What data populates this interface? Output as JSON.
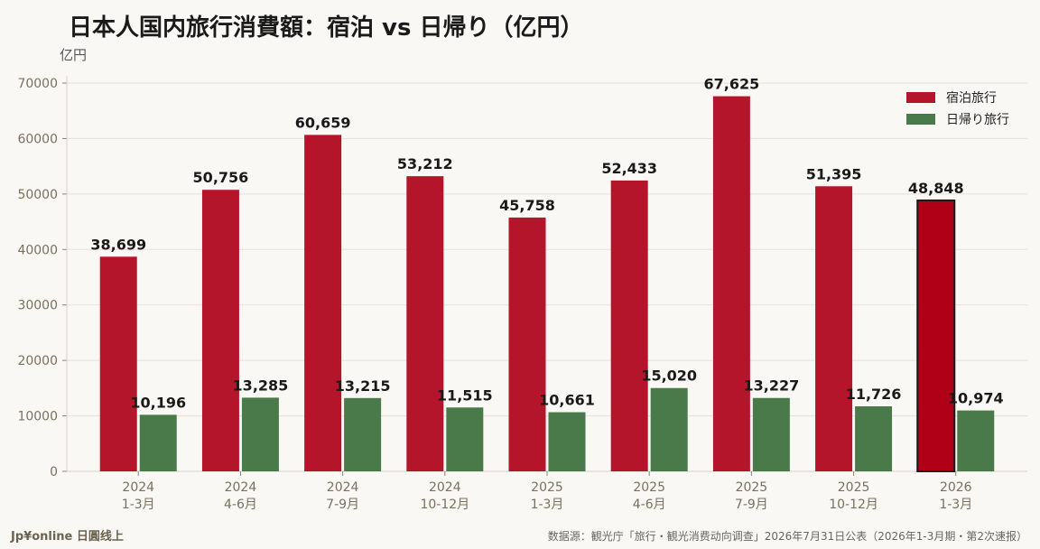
{
  "chart_data": {
    "type": "bar",
    "title": "日本人国内旅行消費額：宿泊 vs 日帰り（亿円）",
    "ylabel": "亿円",
    "ylim": [
      0,
      70000
    ],
    "yticks": [
      "0",
      "10000",
      "20000",
      "30000",
      "40000",
      "50000",
      "60000",
      "70000"
    ],
    "categories": [
      [
        "2024",
        "1-3月"
      ],
      [
        "2024",
        "4-6月"
      ],
      [
        "2024",
        "7-9月"
      ],
      [
        "2024",
        "10-12月"
      ],
      [
        "2025",
        "1-3月"
      ],
      [
        "2025",
        "4-6月"
      ],
      [
        "2025",
        "7-9月"
      ],
      [
        "2025",
        "10-12月"
      ],
      [
        "2026",
        "1-3月"
      ]
    ],
    "series": [
      {
        "name": "宿泊旅行",
        "color": "#b5152b",
        "highlight_color": "#b00018",
        "values": [
          38699,
          50756,
          60659,
          53212,
          45758,
          52433,
          67625,
          51395,
          48848
        ],
        "labels": [
          "38,699",
          "50,756",
          "60,659",
          "53,212",
          "45,758",
          "52,433",
          "67,625",
          "51,395",
          "48,848"
        ]
      },
      {
        "name": "日帰り旅行",
        "color": "#4a7a4a",
        "values": [
          10196,
          13285,
          13215,
          11515,
          10661,
          15020,
          13227,
          11726,
          10974
        ],
        "labels": [
          "10,196",
          "13,285",
          "13,215",
          "11,515",
          "10,661",
          "15,020",
          "13,227",
          "11,726",
          "10,974"
        ]
      }
    ],
    "highlight_index": 8,
    "grid": true,
    "legend_position": "top-right"
  },
  "footer": {
    "brand": "Jp¥online 日圓线上",
    "source": "数据源：観光庁「旅行・観光消费动向调查」2026年7月31日公表（2026年1-3月期・第2次速报）"
  }
}
